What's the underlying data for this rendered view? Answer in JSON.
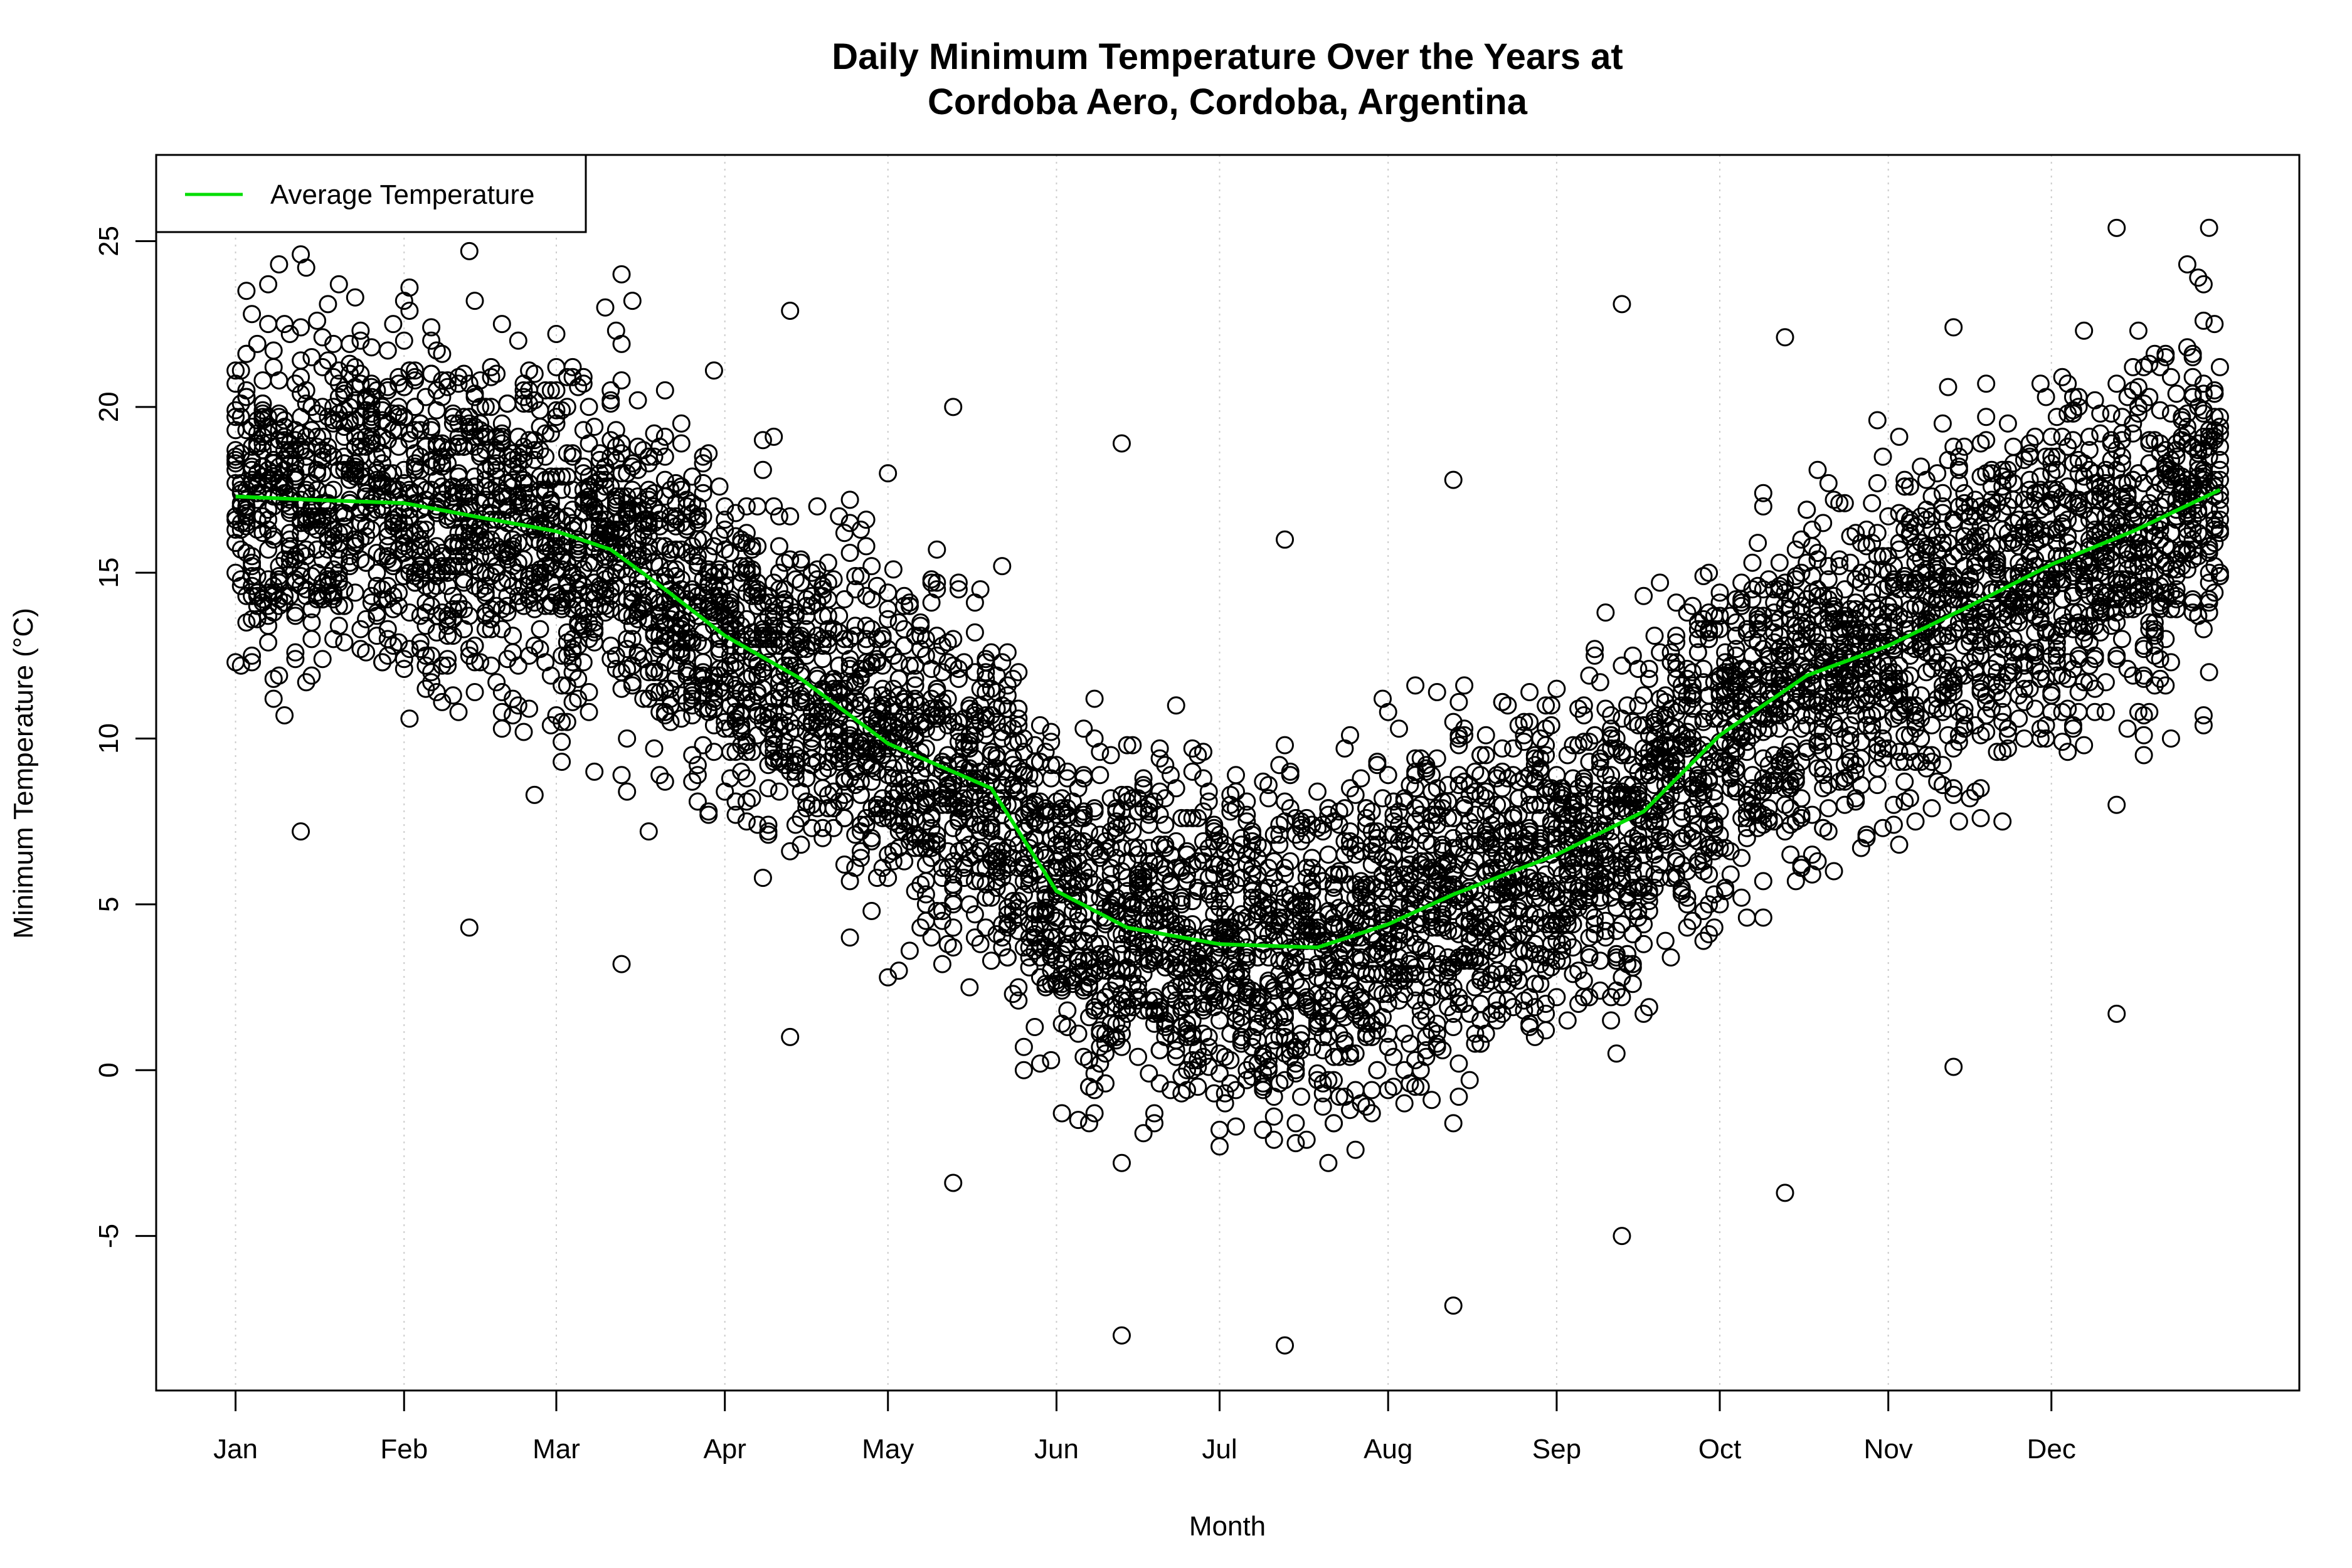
{
  "chart_data": {
    "type": "scatter",
    "title_lines": [
      "Daily Minimum Temperature Over the Years at",
      "Cordoba Aero, Cordoba, Argentina"
    ],
    "xlabel": "Month",
    "ylabel": "Minimum Temperature (°C)",
    "xlim": [
      -13.6,
      380.6
    ],
    "ylim": [
      -9.66,
      27.6
    ],
    "x_ticks": [
      {
        "day": 1,
        "label": "Jan"
      },
      {
        "day": 32,
        "label": "Feb"
      },
      {
        "day": 60,
        "label": "Mar"
      },
      {
        "day": 91,
        "label": "Apr"
      },
      {
        "day": 121,
        "label": "May"
      },
      {
        "day": 152,
        "label": "Jun"
      },
      {
        "day": 182,
        "label": "Jul"
      },
      {
        "day": 213,
        "label": "Aug"
      },
      {
        "day": 244,
        "label": "Sep"
      },
      {
        "day": 274,
        "label": "Oct"
      },
      {
        "day": 305,
        "label": "Nov"
      },
      {
        "day": 335,
        "label": "Dec"
      }
    ],
    "y_ticks": [
      {
        "value": -5,
        "label": "-5"
      },
      {
        "value": 0,
        "label": "0"
      },
      {
        "value": 5,
        "label": "5"
      },
      {
        "value": 10,
        "label": "10"
      },
      {
        "value": 15,
        "label": "15"
      },
      {
        "value": 20,
        "label": "20"
      },
      {
        "value": 25,
        "label": "25"
      }
    ],
    "grid": "vertical dotted at month ticks",
    "legend": {
      "placement": "top-left",
      "entries": [
        {
          "label": "Average Temperature",
          "color": "#00dd00"
        }
      ]
    },
    "series": [
      {
        "name": "Average Temperature",
        "kind": "line",
        "color": "#00dd00",
        "points": [
          [
            1,
            17.3
          ],
          [
            15,
            17.2
          ],
          [
            32,
            17.1
          ],
          [
            45,
            16.7
          ],
          [
            60,
            16.25
          ],
          [
            70,
            15.7
          ],
          [
            80,
            14.5
          ],
          [
            91,
            13.1
          ],
          [
            105,
            11.8
          ],
          [
            121,
            9.85
          ],
          [
            140,
            8.5
          ],
          [
            152,
            5.4
          ],
          [
            165,
            4.3
          ],
          [
            182,
            3.8
          ],
          [
            200,
            3.7
          ],
          [
            213,
            4.4
          ],
          [
            225,
            5.3
          ],
          [
            244,
            6.5
          ],
          [
            260,
            7.8
          ],
          [
            274,
            10.1
          ],
          [
            290,
            11.9
          ],
          [
            305,
            12.8
          ],
          [
            320,
            14.0
          ],
          [
            335,
            15.25
          ],
          [
            350,
            16.25
          ],
          [
            366,
            17.5
          ]
        ]
      },
      {
        "kind": "scatter",
        "marker": "open-circle",
        "color": "#000000",
        "monthly_extremes": [
          {
            "month": "Jan",
            "min": 7.2,
            "max": 24.6
          },
          {
            "month": "Feb",
            "min": 4.3,
            "max": 24.7
          },
          {
            "month": "Mar",
            "min": 3.2,
            "max": 24.0
          },
          {
            "month": "Apr",
            "min": 1.0,
            "max": 22.9
          },
          {
            "month": "May",
            "min": -3.4,
            "max": 20.0
          },
          {
            "month": "Jun",
            "min": -8.0,
            "max": 18.9
          },
          {
            "month": "Jul",
            "min": -8.3,
            "max": 16.0
          },
          {
            "month": "Aug",
            "min": -7.1,
            "max": 17.8
          },
          {
            "month": "Sep",
            "min": -5.0,
            "max": 23.1
          },
          {
            "month": "Oct",
            "min": -3.7,
            "max": 22.1
          },
          {
            "month": "Nov",
            "min": 0.1,
            "max": 22.4
          },
          {
            "month": "Dec",
            "min": 1.7,
            "max": 25.4
          }
        ]
      }
    ]
  }
}
